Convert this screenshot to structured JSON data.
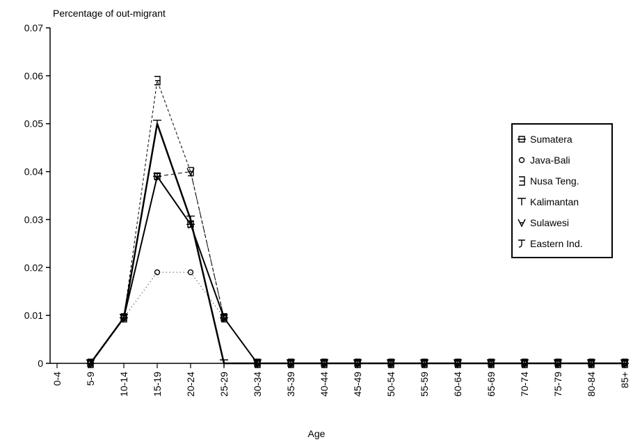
{
  "chart_data": {
    "type": "line",
    "y_label": "Percentage of out-migrant",
    "x_label": "Age",
    "categories": [
      "0-4",
      "5-9",
      "10-14",
      "15-19",
      "20-24",
      "25-29",
      "30-34",
      "35-39",
      "40-44",
      "45-49",
      "50-54",
      "55-59",
      "60-64",
      "65-69",
      "70-74",
      "75-79",
      "80-84",
      "85+"
    ],
    "series": [
      {
        "name": "Sumatera",
        "color": "#000000",
        "width": 1.5,
        "dash": "none",
        "marker": "square",
        "values": [
          null,
          0,
          0.0095,
          0.039,
          0.029,
          0.0095,
          0,
          0,
          0,
          0,
          0,
          0,
          0,
          0,
          0,
          0,
          0,
          0
        ]
      },
      {
        "name": "Java-Bali",
        "color": "#000000",
        "width": 1,
        "dash": "1 4",
        "marker": "circle",
        "values": [
          null,
          0,
          0.0095,
          0.019,
          0.019,
          0.0095,
          0,
          0,
          0,
          0,
          0,
          0,
          0,
          0,
          0,
          0,
          0,
          0
        ]
      },
      {
        "name": "Nusa Teng.",
        "color": "#000000",
        "width": 1,
        "dash": "4 3",
        "marker": "bracket",
        "values": [
          null,
          0,
          0.0095,
          0.059,
          0.04,
          0.0095,
          0,
          0,
          0,
          0,
          0,
          0,
          0,
          0,
          0,
          0,
          0,
          0
        ]
      },
      {
        "name": "Kalimantan",
        "color": "#000000",
        "width": 2.5,
        "dash": "none",
        "marker": "tee",
        "values": [
          null,
          0,
          0.0095,
          0.05,
          0.03,
          0,
          0,
          0,
          0,
          0,
          0,
          0,
          0,
          0,
          0,
          0,
          0,
          0
        ]
      },
      {
        "name": "Sulawesi",
        "color": "#000000",
        "width": 1,
        "dash": "6 4",
        "marker": "triangle-down",
        "values": [
          null,
          0,
          0.0095,
          0.039,
          0.04,
          0.0095,
          0,
          0,
          0,
          0,
          0,
          0,
          0,
          0,
          0,
          0,
          0,
          0
        ]
      },
      {
        "name": "Eastern Ind.",
        "color": "#000000",
        "width": 2,
        "dash": "none",
        "marker": "hook",
        "values": [
          null,
          0,
          0.0095,
          0.039,
          0.029,
          0.0095,
          0,
          0,
          0,
          0,
          0,
          0,
          0,
          0,
          0,
          0,
          0,
          0
        ]
      }
    ],
    "ylim": [
      0,
      0.07
    ],
    "yticks": [
      0,
      0.01,
      0.02,
      0.03,
      0.04,
      0.05,
      0.06,
      0.07
    ],
    "legend": "right"
  }
}
